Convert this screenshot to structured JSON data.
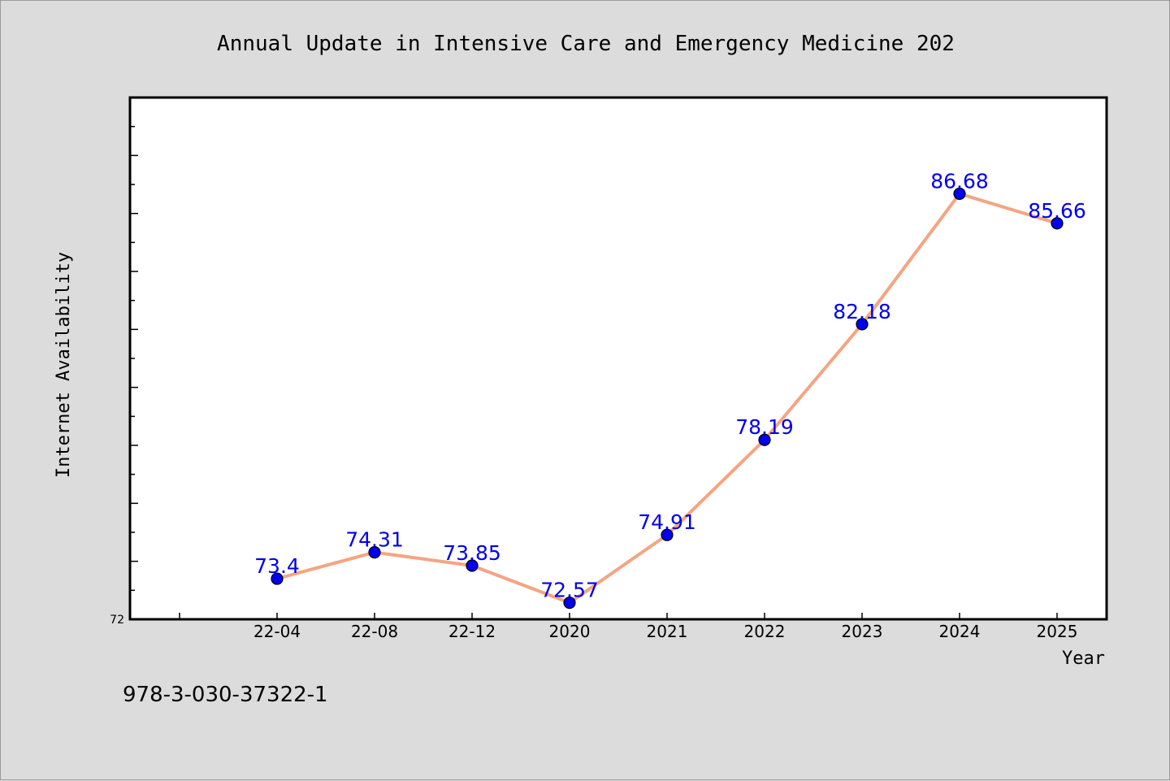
{
  "footer_text": "978-3-030-37322-1",
  "y_min_label": "72",
  "colors": {
    "line": "#f4a582",
    "marker": "#0000ee",
    "data_label": "#0000ee",
    "plot_background": "#ffffff",
    "page_background": "#dcdcdc"
  },
  "chart_data": {
    "type": "line",
    "title": "Annual Update in Intensive Care and Emergency Medicine 202",
    "xlabel": "Year",
    "ylabel": "Internet Availability",
    "categories": [
      "22-04",
      "22-08",
      "22-12",
      "2020",
      "2021",
      "2022",
      "2023",
      "2024",
      "2025"
    ],
    "series": [
      {
        "values": [
          73.4,
          74.31,
          73.85,
          72.57,
          74.91,
          78.19,
          82.18,
          86.68,
          85.66
        ],
        "labels": [
          "73.4",
          "74.31",
          "73.85",
          "72.57",
          "74.91",
          "78.19",
          "82.18",
          "86.68",
          "85.66"
        ]
      }
    ],
    "ylim": [
      72,
      90
    ],
    "grid": false,
    "legend": "none"
  }
}
